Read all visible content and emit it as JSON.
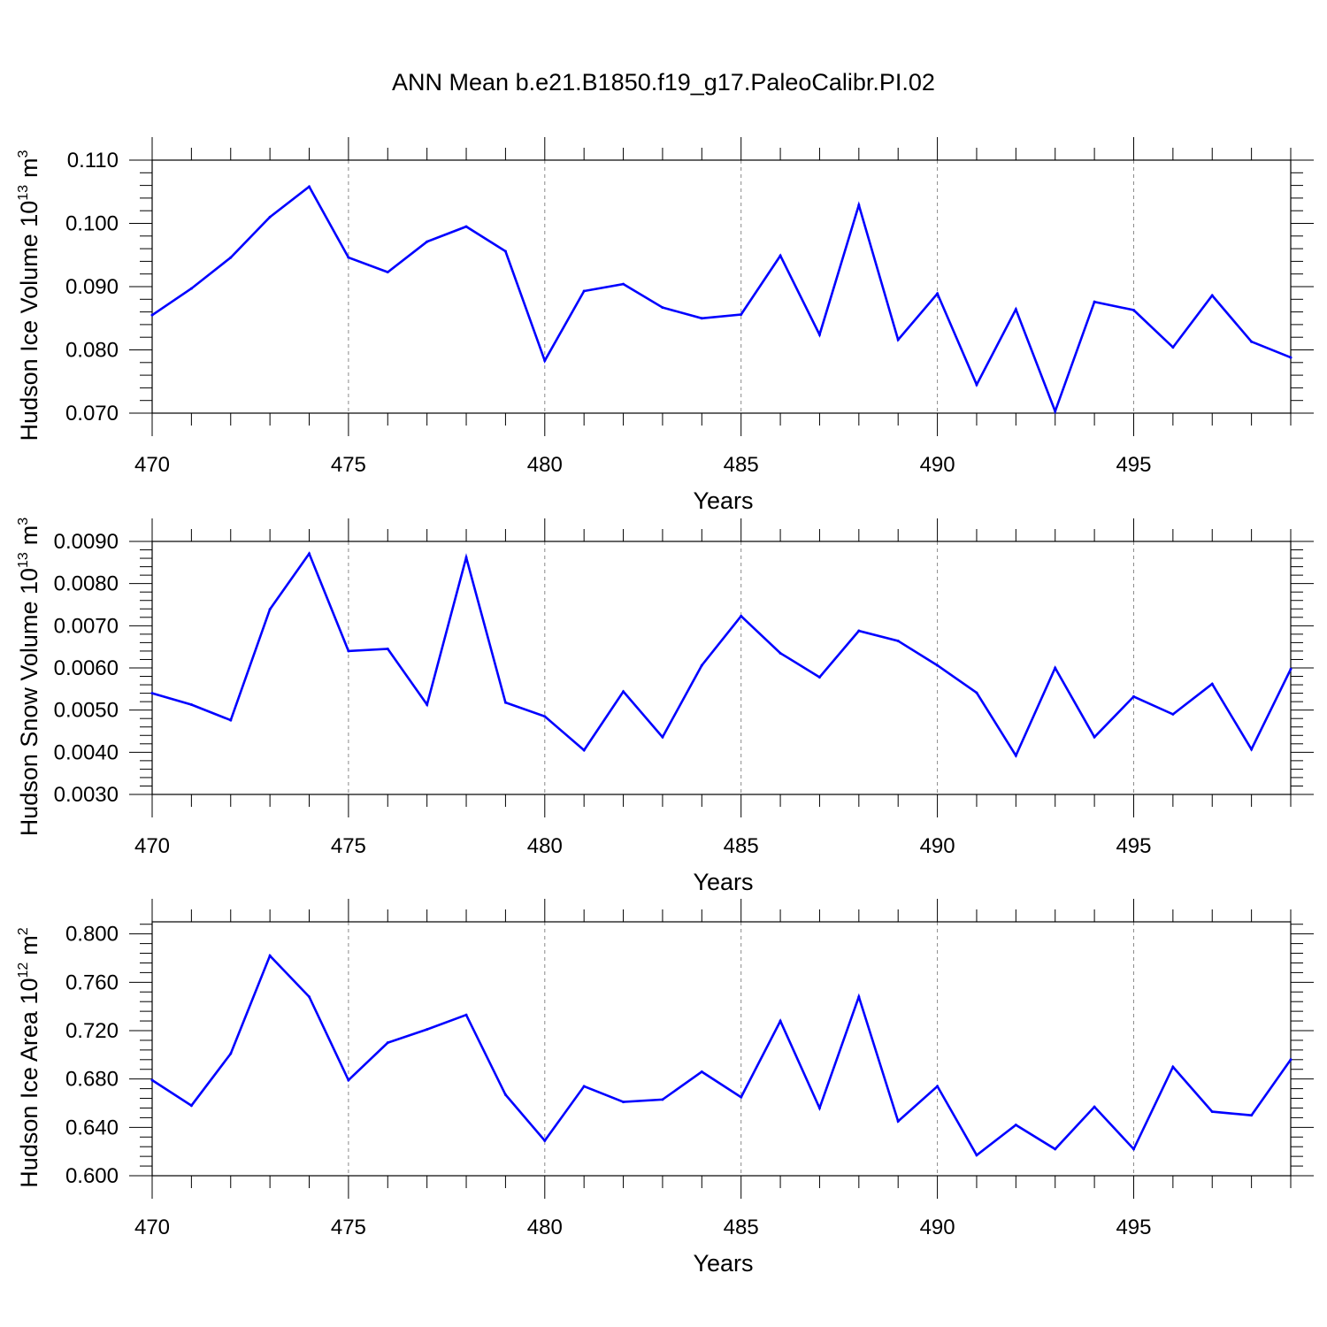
{
  "title": "ANN Mean b.e21.B1850.f19_g17.PaleoCalibr.PI.02",
  "chart_data": [
    {
      "type": "line",
      "xlabel": "Years",
      "ylabel": "Hudson Ice Volume 10",
      "ylabel_sup": "13",
      "ylabel_unit": "m",
      "ylabel_unit_sup": "3",
      "xlim": [
        470,
        499
      ],
      "ylim": [
        0.07,
        0.11
      ],
      "xticks": [
        "470",
        "475",
        "480",
        "485",
        "490",
        "495"
      ],
      "yticks": [
        "0.070",
        "0.080",
        "0.090",
        "0.100",
        "0.110"
      ],
      "line_color": "#0000ff",
      "grid": "dashed vertical at major x ticks",
      "x": [
        470,
        471,
        472,
        473,
        474,
        475,
        476,
        477,
        478,
        479,
        480,
        481,
        482,
        483,
        484,
        485,
        486,
        487,
        488,
        489,
        490,
        491,
        492,
        493,
        494,
        495,
        496,
        497,
        498,
        499
      ],
      "values": [
        0.0855,
        0.0897,
        0.0946,
        0.101,
        0.1058,
        0.0946,
        0.0923,
        0.0971,
        0.0995,
        0.0956,
        0.0783,
        0.0893,
        0.0904,
        0.0867,
        0.085,
        0.0856,
        0.0949,
        0.0824,
        0.1029,
        0.0816,
        0.0889,
        0.0745,
        0.0864,
        0.0703,
        0.0876,
        0.0863,
        0.0804,
        0.0886,
        0.0813,
        0.0788
      ]
    },
    {
      "type": "line",
      "xlabel": "Years",
      "ylabel": "Hudson Snow Volume 10",
      "ylabel_sup": "13",
      "ylabel_unit": "m",
      "ylabel_unit_sup": "3",
      "xlim": [
        470,
        499
      ],
      "ylim": [
        0.003,
        0.009
      ],
      "xticks": [
        "470",
        "475",
        "480",
        "485",
        "490",
        "495"
      ],
      "yticks": [
        "0.0030",
        "0.0040",
        "0.0050",
        "0.0060",
        "0.0070",
        "0.0080",
        "0.0090"
      ],
      "line_color": "#0000ff",
      "grid": "dashed vertical at major x ticks",
      "x": [
        470,
        471,
        472,
        473,
        474,
        475,
        476,
        477,
        478,
        479,
        480,
        481,
        482,
        483,
        484,
        485,
        486,
        487,
        488,
        489,
        490,
        491,
        492,
        493,
        494,
        495,
        496,
        497,
        498,
        499
      ],
      "values": [
        0.0054,
        0.00513,
        0.00476,
        0.00739,
        0.00871,
        0.0064,
        0.00645,
        0.00513,
        0.00862,
        0.00518,
        0.00485,
        0.00405,
        0.00544,
        0.00436,
        0.00606,
        0.00723,
        0.00635,
        0.00578,
        0.00688,
        0.00664,
        0.00606,
        0.00541,
        0.00392,
        0.006,
        0.00436,
        0.00532,
        0.0049,
        0.00562,
        0.00407,
        0.00597
      ]
    },
    {
      "type": "line",
      "xlabel": "Years",
      "ylabel": "Hudson Ice Area 10",
      "ylabel_sup": "12",
      "ylabel_unit": "m",
      "ylabel_unit_sup": "2",
      "xlim": [
        470,
        499
      ],
      "ylim": [
        0.6,
        0.81
      ],
      "xticks": [
        "470",
        "475",
        "480",
        "485",
        "490",
        "495"
      ],
      "yticks": [
        "0.600",
        "0.640",
        "0.680",
        "0.720",
        "0.760",
        "0.800"
      ],
      "line_color": "#0000ff",
      "grid": "dashed vertical at major x ticks",
      "x": [
        470,
        471,
        472,
        473,
        474,
        475,
        476,
        477,
        478,
        479,
        480,
        481,
        482,
        483,
        484,
        485,
        486,
        487,
        488,
        489,
        490,
        491,
        492,
        493,
        494,
        495,
        496,
        497,
        498,
        499
      ],
      "values": [
        0.679,
        0.658,
        0.701,
        0.782,
        0.748,
        0.679,
        0.71,
        0.721,
        0.733,
        0.667,
        0.629,
        0.674,
        0.661,
        0.663,
        0.686,
        0.665,
        0.728,
        0.656,
        0.748,
        0.645,
        0.674,
        0.617,
        0.642,
        0.622,
        0.657,
        0.622,
        0.69,
        0.653,
        0.65,
        0.696
      ]
    }
  ]
}
